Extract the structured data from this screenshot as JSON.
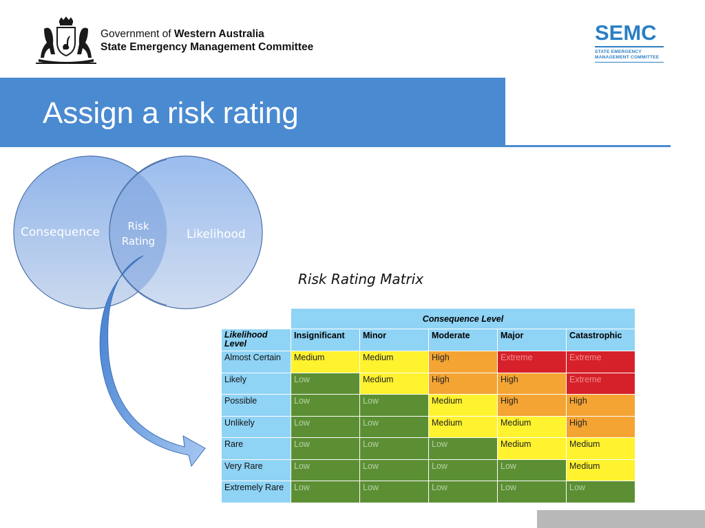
{
  "header": {
    "gov_prefix": "Government of ",
    "gov_name": "Western Australia",
    "committee": "State Emergency Management Committee",
    "semc_logo": {
      "word": "SEMC",
      "line1": "STATE EMERGENCY",
      "line2": "MANAGEMENT COMMITTEE",
      "color": "#2b7fc4"
    }
  },
  "slide": {
    "title": "Assign a risk rating",
    "banner_color": "#4a8ad0"
  },
  "venn": {
    "left_label": "Consequence",
    "right_label": "Likelihood",
    "center_line1": "Risk",
    "center_line2": "Rating"
  },
  "matrix": {
    "caption": "Risk Rating Matrix",
    "consequence_header": "Consequence Level",
    "likelihood_header_line1": "Likelihood",
    "likelihood_header_line2": "Level",
    "columns": [
      "Insignificant",
      "Minor",
      "Moderate",
      "Major",
      "Catastrophic"
    ],
    "rows": [
      {
        "label": "Almost Certain",
        "cells": [
          "Medium",
          "Medium",
          "High",
          "Extreme",
          "Extreme"
        ]
      },
      {
        "label": "Likely",
        "cells": [
          "Low",
          "Medium",
          "High",
          "High",
          "Extreme"
        ]
      },
      {
        "label": "Possible",
        "cells": [
          "Low",
          "Low",
          "Medium",
          "High",
          "High"
        ]
      },
      {
        "label": "Unlikely",
        "cells": [
          "Low",
          "Low",
          "Medium",
          "Medium",
          "High"
        ]
      },
      {
        "label": "Rare",
        "cells": [
          "Low",
          "Low",
          "Low",
          "Medium",
          "Medium"
        ]
      },
      {
        "label": "Very Rare",
        "cells": [
          "Low",
          "Low",
          "Low",
          "Low",
          "Medium"
        ]
      },
      {
        "label": "Extremely Rare",
        "cells": [
          "Low",
          "Low",
          "Low",
          "Low",
          "Low"
        ]
      }
    ],
    "rating_colors": {
      "Low": "#5c8f34",
      "Medium": "#fff22e",
      "High": "#f4a433",
      "Extreme": "#d6212a"
    }
  }
}
